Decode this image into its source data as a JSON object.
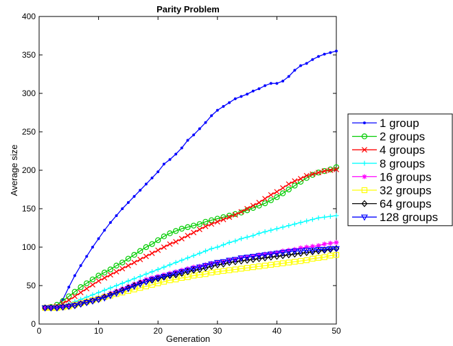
{
  "chart_data": {
    "type": "line",
    "title": "Parity Problem",
    "xlabel": "Generation",
    "ylabel": "Average size",
    "xlim": [
      0,
      50
    ],
    "ylim": [
      0,
      400
    ],
    "xticks": [
      0,
      10,
      20,
      30,
      40,
      50
    ],
    "yticks": [
      0,
      50,
      100,
      150,
      200,
      250,
      300,
      350,
      400
    ],
    "grid": false,
    "legend_position": "right-outside",
    "x": [
      1,
      2,
      3,
      4,
      5,
      6,
      7,
      8,
      9,
      10,
      11,
      12,
      13,
      14,
      15,
      16,
      17,
      18,
      19,
      20,
      21,
      22,
      23,
      24,
      25,
      26,
      27,
      28,
      29,
      30,
      31,
      32,
      33,
      34,
      35,
      36,
      37,
      38,
      39,
      40,
      41,
      42,
      43,
      44,
      45,
      46,
      47,
      48,
      49,
      50
    ],
    "series": [
      {
        "name": "1 group",
        "color": "#0000ff",
        "marker": "dot",
        "values": [
          21,
          22,
          24,
          32,
          48,
          63,
          76,
          88,
          100,
          111,
          122,
          132,
          141,
          150,
          158,
          166,
          174,
          182,
          190,
          198,
          208,
          214,
          221,
          229,
          239,
          246,
          254,
          262,
          271,
          278,
          283,
          288,
          293,
          296,
          299,
          303,
          306,
          310,
          313,
          313,
          316,
          322,
          330,
          336,
          339,
          344,
          348,
          351,
          353,
          355
        ]
      },
      {
        "name": "2 groups",
        "color": "#00cc00",
        "marker": "circle",
        "values": [
          21,
          22,
          25,
          30,
          36,
          42,
          48,
          53,
          58,
          63,
          67,
          71,
          76,
          80,
          85,
          90,
          95,
          100,
          104,
          109,
          114,
          118,
          121,
          124,
          126,
          128,
          130,
          133,
          135,
          137,
          139,
          141,
          143,
          145,
          148,
          151,
          154,
          157,
          161,
          165,
          170,
          175,
          180,
          185,
          190,
          194,
          197,
          199,
          201,
          204
        ]
      },
      {
        "name": "4 groups",
        "color": "#ff0000",
        "marker": "x",
        "values": [
          21,
          22,
          23,
          27,
          31,
          36,
          41,
          46,
          51,
          56,
          60,
          64,
          68,
          72,
          76,
          80,
          84,
          88,
          92,
          96,
          100,
          104,
          107,
          111,
          115,
          119,
          123,
          127,
          130,
          133,
          136,
          139,
          142,
          146,
          150,
          154,
          158,
          163,
          168,
          172,
          177,
          182,
          186,
          189,
          193,
          195,
          197,
          199,
          200,
          201
        ]
      },
      {
        "name": "8 groups",
        "color": "#00ffff",
        "marker": "plus",
        "values": [
          21,
          21,
          22,
          24,
          26,
          29,
          32,
          35,
          38,
          41,
          44,
          47,
          50,
          53,
          56,
          59,
          62,
          65,
          68,
          71,
          74,
          77,
          80,
          83,
          86,
          89,
          92,
          95,
          98,
          100,
          103,
          106,
          108,
          111,
          113,
          115,
          118,
          120,
          122,
          124,
          126,
          128,
          130,
          132,
          134,
          136,
          138,
          139,
          140,
          141
        ]
      },
      {
        "name": "16 groups",
        "color": "#ff00ff",
        "marker": "star",
        "values": [
          21,
          21,
          22,
          23,
          24,
          26,
          28,
          30,
          32,
          34,
          37,
          40,
          43,
          46,
          49,
          52,
          55,
          58,
          60,
          62,
          64,
          66,
          68,
          70,
          72,
          74,
          75,
          77,
          79,
          80,
          81,
          83,
          84,
          86,
          87,
          88,
          90,
          91,
          92,
          93,
          95,
          96,
          97,
          99,
          100,
          101,
          102,
          104,
          105,
          106
        ]
      },
      {
        "name": "32 groups",
        "color": "#ffff00",
        "marker": "square",
        "values": [
          21,
          21,
          21,
          22,
          23,
          25,
          27,
          29,
          31,
          33,
          35,
          37,
          39,
          41,
          43,
          45,
          47,
          49,
          51,
          53,
          55,
          57,
          58,
          60,
          61,
          63,
          64,
          65,
          67,
          68,
          69,
          70,
          71,
          72,
          73,
          74,
          75,
          76,
          77,
          78,
          79,
          80,
          81,
          82,
          83,
          85,
          86,
          87,
          89,
          90
        ]
      },
      {
        "name": "64 groups",
        "color": "#000000",
        "marker": "diamond",
        "values": [
          21,
          21,
          21,
          22,
          23,
          24,
          26,
          28,
          30,
          32,
          35,
          38,
          41,
          44,
          47,
          50,
          53,
          55,
          57,
          59,
          61,
          63,
          64,
          66,
          68,
          70,
          71,
          73,
          75,
          77,
          78,
          80,
          81,
          82,
          83,
          84,
          85,
          86,
          87,
          88,
          89,
          90,
          91,
          92,
          93,
          94,
          95,
          96,
          97,
          98
        ]
      },
      {
        "name": "128 groups",
        "color": "#0000ff",
        "marker": "triangle-down",
        "values": [
          21,
          21,
          21,
          22,
          23,
          24,
          26,
          28,
          30,
          32,
          34,
          37,
          40,
          43,
          46,
          49,
          52,
          55,
          58,
          60,
          62,
          64,
          66,
          68,
          70,
          72,
          74,
          76,
          78,
          80,
          81,
          83,
          84,
          86,
          87,
          88,
          89,
          90,
          91,
          92,
          93,
          94,
          95,
          95,
          96,
          96,
          97,
          97,
          98,
          98
        ]
      }
    ]
  }
}
